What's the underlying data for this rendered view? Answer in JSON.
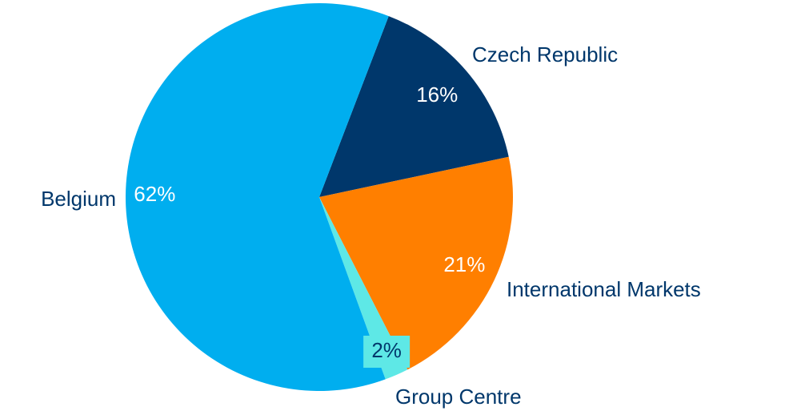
{
  "chart_data": {
    "type": "pie",
    "categories": [
      "Czech Republic",
      "International Markets",
      "Group Centre",
      "Belgium"
    ],
    "values": [
      16,
      21,
      2,
      62
    ],
    "value_labels": [
      "16%",
      "21%",
      "2%",
      "62%"
    ],
    "colors": [
      "#00376b",
      "#ff7f00",
      "#5ee8e6",
      "#00aeef"
    ]
  }
}
